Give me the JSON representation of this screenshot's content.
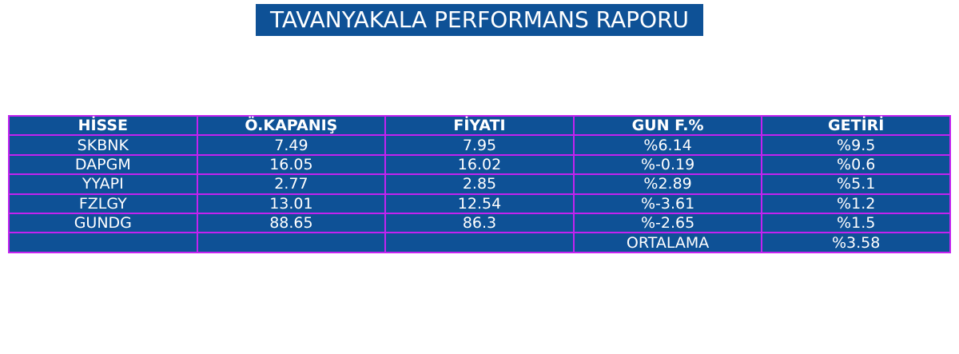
{
  "header": {
    "title": "TAVANYAKALA PERFORMANS RAPORU"
  },
  "table": {
    "columns": [
      "HİSSE",
      "Ö.KAPANIŞ",
      "FİYATI",
      "GUN F.%",
      "GETİRİ"
    ],
    "rows": [
      [
        "SKBNK",
        "7.49",
        "7.95",
        "%6.14",
        "%9.5"
      ],
      [
        "DAPGM",
        "16.05",
        "16.02",
        "%-0.19",
        "%0.6"
      ],
      [
        "YYAPI",
        "2.77",
        "2.85",
        "%2.89",
        "%5.1"
      ],
      [
        "FZLGY",
        "13.01",
        "12.54",
        "%-3.61",
        "%1.2"
      ],
      [
        "GUNDG",
        "88.65",
        "86.3",
        "%-2.65",
        "%1.5"
      ]
    ],
    "footer": {
      "label": "ORTALAMA",
      "value": "%3.58"
    }
  }
}
